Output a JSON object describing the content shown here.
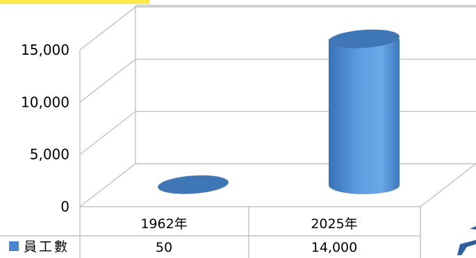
{
  "chart_data": {
    "type": "bar",
    "categories": [
      "1962年",
      "2025年"
    ],
    "series": [
      {
        "name": "員工數",
        "values": [
          50,
          14000
        ]
      }
    ],
    "ylim": [
      0,
      15000
    ],
    "yticks": [
      "0",
      "5,000",
      "10,000",
      "15,000"
    ],
    "data_table": [
      {
        "category": "1962年",
        "value_label": "50"
      },
      {
        "category": "2025年",
        "value_label": "14,000"
      }
    ],
    "grid": true,
    "style": "3d-cylinder",
    "colors": {
      "bar": "#4f8fd6",
      "bar_top": "#3f76b6",
      "legend_key": "#4a86cf",
      "highlight": "#ffe94d"
    }
  }
}
